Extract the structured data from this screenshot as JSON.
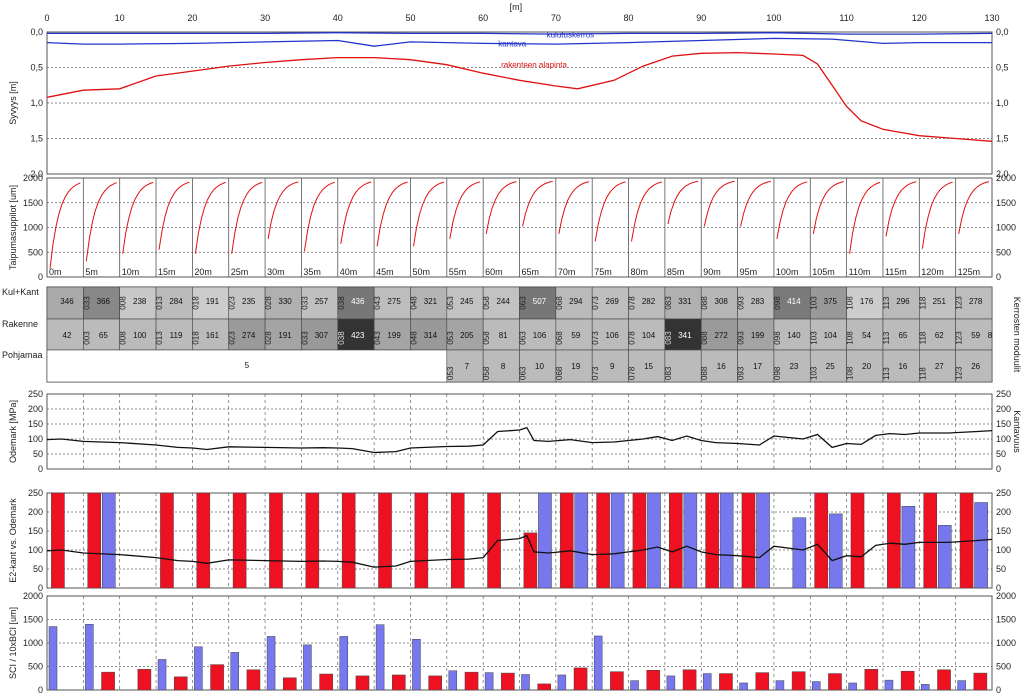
{
  "colors": {
    "blue_line": "#2233cc",
    "red_line": "#e01010",
    "bar_red": "#ee1122",
    "bar_blue": "#7777ee",
    "grid": "#666666",
    "black_line": "#111111"
  },
  "x_axis": {
    "label": "[m]",
    "ticks": [
      0,
      10,
      20,
      30,
      40,
      50,
      60,
      70,
      80,
      90,
      100,
      110,
      120,
      130
    ],
    "range": [
      0,
      130
    ]
  },
  "panels": {
    "depth": {
      "ylabel": "Syvyys [m]",
      "ylim": [
        0.0,
        2.0
      ],
      "ticks": [
        "0,0",
        "0,5",
        "1,0",
        "1,5",
        "2,0"
      ],
      "series": [
        {
          "name": "kulutuskerros",
          "color": "#2233cc",
          "x": [
            0,
            10,
            20,
            30,
            40,
            50,
            60,
            70,
            80,
            90,
            100,
            110,
            120,
            130
          ],
          "y": [
            0.02,
            0.02,
            0.02,
            0.02,
            0.01,
            0.02,
            0.02,
            0.03,
            0.02,
            0.02,
            0.01,
            0.03,
            0.03,
            0.02
          ]
        },
        {
          "name": "kantava",
          "color": "#2233cc",
          "x": [
            0,
            5,
            10,
            20,
            30,
            40,
            45,
            50,
            60,
            70,
            80,
            90,
            100,
            108,
            115,
            120,
            130
          ],
          "y": [
            0.15,
            0.17,
            0.17,
            0.16,
            0.14,
            0.12,
            0.2,
            0.14,
            0.16,
            0.17,
            0.15,
            0.12,
            0.09,
            0.1,
            0.16,
            0.15,
            0.15
          ]
        },
        {
          "name": "rakenteen alapinta",
          "color": "#e01010",
          "x": [
            0,
            5,
            10,
            15,
            20,
            25,
            30,
            35,
            40,
            45,
            50,
            55,
            60,
            65,
            70,
            73,
            78,
            82,
            86,
            90,
            95,
            100,
            104,
            106,
            108,
            110,
            112,
            115,
            120,
            125,
            130
          ],
          "y": [
            0.92,
            0.82,
            0.8,
            0.62,
            0.55,
            0.48,
            0.43,
            0.39,
            0.36,
            0.36,
            0.39,
            0.46,
            0.58,
            0.68,
            0.76,
            0.8,
            0.68,
            0.48,
            0.34,
            0.3,
            0.29,
            0.31,
            0.33,
            0.45,
            0.75,
            1.05,
            1.25,
            1.37,
            1.46,
            1.5,
            1.54
          ]
        }
      ]
    },
    "deflection": {
      "ylabel": "Taipumasuppilot [um]",
      "ylim": [
        0,
        2000
      ],
      "ticks": [
        "0",
        "500",
        "1000",
        "1500",
        "2000"
      ],
      "basin_labels": [
        "0m",
        "5m",
        "10m",
        "15m",
        "20m",
        "25m",
        "30m",
        "35m",
        "40m",
        "45m",
        "50m",
        "55m",
        "60m",
        "65m",
        "70m",
        "75m",
        "80m",
        "85m",
        "90m",
        "95m",
        "100m",
        "105m",
        "110m",
        "115m",
        "120m",
        "125m"
      ],
      "d0_values": [
        1800,
        1650,
        1500,
        1420,
        1500,
        1500,
        1200,
        1450,
        1300,
        1350,
        1350,
        1200,
        1100,
        950,
        1100,
        1250,
        1250,
        900,
        950,
        950,
        1200,
        1100,
        1500,
        1150,
        1400,
        1100
      ]
    },
    "modules": {
      "row_labels": [
        "Kul+Kant",
        "Rakenne",
        "Pohjamaa"
      ],
      "right_label": "Kerrosten moduulit",
      "top_row": [
        {
          "thick": "",
          "value": "346",
          "shade": "#aaaaaa"
        },
        {
          "thick": "033",
          "value": "366",
          "shade": "#888888"
        },
        {
          "thick": "008",
          "value": "238",
          "shade": "#c8c8c8"
        },
        {
          "thick": "013",
          "value": "284",
          "shade": "#bbbbbb"
        },
        {
          "thick": "018",
          "value": "191",
          "shade": "#cccccc"
        },
        {
          "thick": "023",
          "value": "235",
          "shade": "#c4c4c4"
        },
        {
          "thick": "028",
          "value": "330",
          "shade": "#b0b0b0"
        },
        {
          "thick": "033",
          "value": "257",
          "shade": "#c0c0c0"
        },
        {
          "thick": "038",
          "value": "436",
          "shade": "#777777"
        },
        {
          "thick": "043",
          "value": "275",
          "shade": "#bdbdbd"
        },
        {
          "thick": "048",
          "value": "321",
          "shade": "#b4b4b4"
        },
        {
          "thick": "053",
          "value": "245",
          "shade": "#c2c2c2"
        },
        {
          "thick": "058",
          "value": "244",
          "shade": "#c2c2c2"
        },
        {
          "thick": "063",
          "value": "507",
          "shade": "#777777"
        },
        {
          "thick": "068",
          "value": "294",
          "shade": "#bababa"
        },
        {
          "thick": "073",
          "value": "269",
          "shade": "#bebebe"
        },
        {
          "thick": "078",
          "value": "282",
          "shade": "#bcbcbc"
        },
        {
          "thick": "083",
          "value": "331",
          "shade": "#b0b0b0"
        },
        {
          "thick": "088",
          "value": "308",
          "shade": "#b6b6b6"
        },
        {
          "thick": "093",
          "value": "283",
          "shade": "#bcbcbc"
        },
        {
          "thick": "098",
          "value": "414",
          "shade": "#7a7a7a"
        },
        {
          "thick": "103",
          "value": "375",
          "shade": "#999999"
        },
        {
          "thick": "108",
          "value": "176",
          "shade": "#cdcdcd"
        },
        {
          "thick": "113",
          "value": "296",
          "shade": "#bababa"
        },
        {
          "thick": "118",
          "value": "251",
          "shade": "#c1c1c1"
        },
        {
          "thick": "123",
          "value": "278",
          "shade": "#bdbdbd"
        }
      ],
      "mid_row": [
        {
          "thick": "",
          "value": "42",
          "shade": "#bbbbbb"
        },
        {
          "thick": "003",
          "value": "65",
          "shade": "#bbbbbb"
        },
        {
          "thick": "008",
          "value": "100",
          "shade": "#bbbbbb"
        },
        {
          "thick": "013",
          "value": "119",
          "shade": "#bbbbbb"
        },
        {
          "thick": "018",
          "value": "161",
          "shade": "#bbbbbb"
        },
        {
          "thick": "023",
          "value": "274",
          "shade": "#9a9a9a"
        },
        {
          "thick": "028",
          "value": "191",
          "shade": "#a4a4a4"
        },
        {
          "thick": "033",
          "value": "307",
          "shade": "#999999"
        },
        {
          "thick": "038",
          "value": "423",
          "shade": "#333333"
        },
        {
          "thick": "043",
          "value": "199",
          "shade": "#a4a4a4"
        },
        {
          "thick": "048",
          "value": "314",
          "shade": "#999999"
        },
        {
          "thick": "053",
          "value": "205",
          "shade": "#a4a4a4"
        },
        {
          "thick": "058",
          "value": "81",
          "shade": "#bbbbbb"
        },
        {
          "thick": "063",
          "value": "106",
          "shade": "#bbbbbb"
        },
        {
          "thick": "068",
          "value": "59",
          "shade": "#bbbbbb"
        },
        {
          "thick": "073",
          "value": "106",
          "shade": "#bbbbbb"
        },
        {
          "thick": "078",
          "value": "104",
          "shade": "#bbbbbb"
        },
        {
          "thick": "083",
          "value": "341",
          "shade": "#333333"
        },
        {
          "thick": "088",
          "value": "272",
          "shade": "#9a9a9a"
        },
        {
          "thick": "093",
          "value": "199",
          "shade": "#a4a4a4"
        },
        {
          "thick": "098",
          "value": "140",
          "shade": "#bbbbbb"
        },
        {
          "thick": "103",
          "value": "104",
          "shade": "#bbbbbb"
        },
        {
          "thick": "108",
          "value": "54",
          "shade": "#bbbbbb"
        },
        {
          "thick": "113",
          "value": "65",
          "shade": "#bbbbbb"
        },
        {
          "thick": "118",
          "value": "62",
          "shade": "#bbbbbb"
        },
        {
          "thick": "123",
          "value": "59",
          "shade": "#bbbbbb"
        }
      ],
      "mid_row_tail": "8",
      "bottom_first": "5",
      "bottom_first_span": 11,
      "bottom_row": [
        {
          "thick": "053",
          "value": "7"
        },
        {
          "thick": "058",
          "value": "8"
        },
        {
          "thick": "063",
          "value": "10"
        },
        {
          "thick": "068",
          "value": "19"
        },
        {
          "thick": "073",
          "value": "9"
        },
        {
          "thick": "078",
          "value": "15"
        },
        {
          "thick": "083",
          "value": ""
        },
        {
          "thick": "088",
          "value": "16"
        },
        {
          "thick": "093",
          "value": "17"
        },
        {
          "thick": "098",
          "value": "23"
        },
        {
          "thick": "103",
          "value": "25"
        },
        {
          "thick": "108",
          "value": "20"
        },
        {
          "thick": "113",
          "value": "16"
        },
        {
          "thick": "118",
          "value": "27"
        },
        {
          "thick": "123",
          "value": "26"
        }
      ]
    },
    "odemark": {
      "ylabel": "Odemark [MPa]",
      "right_label": "Kantavuus",
      "ylim": [
        0,
        250
      ],
      "ticks": [
        "0",
        "50",
        "100",
        "150",
        "200",
        "250"
      ],
      "x": [
        0,
        2,
        5,
        10,
        15,
        18,
        20,
        22,
        25,
        30,
        35,
        38,
        40,
        42,
        45,
        48,
        50,
        55,
        58,
        60,
        62,
        65,
        66,
        67,
        69,
        72,
        75,
        78,
        80,
        82,
        84,
        86,
        88,
        90,
        92,
        95,
        98,
        100,
        102,
        104,
        106,
        108,
        110,
        112,
        114,
        116,
        118,
        120,
        124,
        128,
        130
      ],
      "y": [
        98,
        100,
        92,
        88,
        80,
        72,
        70,
        65,
        74,
        72,
        70,
        71,
        70,
        68,
        55,
        58,
        70,
        75,
        76,
        80,
        125,
        130,
        138,
        95,
        92,
        98,
        88,
        90,
        95,
        100,
        108,
        95,
        110,
        95,
        88,
        85,
        80,
        110,
        105,
        100,
        115,
        72,
        85,
        82,
        112,
        118,
        115,
        120,
        120,
        125,
        128
      ]
    },
    "e2": {
      "ylabel": "E2-kant vs. Odemark",
      "ylim": [
        0,
        250
      ],
      "ticks": [
        "0",
        "50",
        "100",
        "150",
        "200",
        "250"
      ],
      "red": [
        260,
        260,
        0,
        260,
        260,
        260,
        260,
        260,
        260,
        260,
        260,
        260,
        260,
        145,
        260,
        260,
        260,
        260,
        260,
        260,
        0,
        260,
        260,
        260,
        260,
        260
      ],
      "blue": [
        0,
        260,
        0,
        0,
        0,
        0,
        0,
        0,
        0,
        0,
        0,
        0,
        0,
        260,
        250,
        260,
        250,
        260,
        260,
        260,
        185,
        195,
        0,
        215,
        165,
        225
      ]
    },
    "sci": {
      "ylabel": "SCI / 10xBCI [um]",
      "ylim": [
        0,
        2000
      ],
      "ticks": [
        "0",
        "500",
        "1000",
        "1500",
        "2000"
      ],
      "red": [
        0,
        380,
        440,
        280,
        540,
        430,
        260,
        340,
        300,
        320,
        300,
        380,
        360,
        130,
        470,
        390,
        420,
        430,
        350,
        370,
        390,
        350,
        440,
        400,
        430,
        360
      ],
      "blue": [
        1350,
        1400,
        0,
        650,
        920,
        800,
        1140,
        960,
        1140,
        1390,
        1080,
        410,
        370,
        330,
        320,
        1150,
        200,
        300,
        350,
        150,
        200,
        180,
        150,
        210,
        120,
        200
      ]
    }
  },
  "chart_data": {
    "type": "line",
    "x_label": "[m]",
    "x_range": [
      0,
      130
    ],
    "depth_series_names": [
      "kulutuskerros",
      "kantava",
      "rakenteen alapinta"
    ]
  }
}
